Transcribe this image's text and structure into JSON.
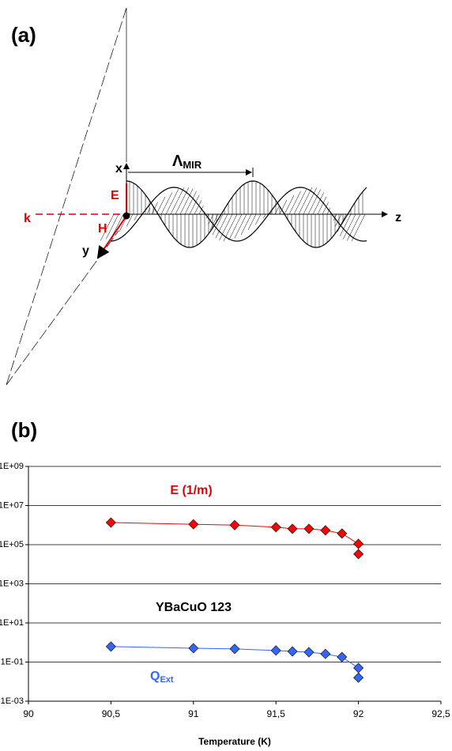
{
  "panel_a": {
    "label": "(a)",
    "diagram": {
      "x_label": "x",
      "e_label": "E",
      "k_label": "k",
      "h_label": "H",
      "y_label": "y",
      "z_label": "z",
      "lambda_symbol": "Λ",
      "lambda_subscript": "MIR"
    }
  },
  "panel_b": {
    "label": "(b)"
  },
  "chart_data": {
    "type": "scatter-line",
    "x_label": "Temperature (K)",
    "log_y": true,
    "grid": true,
    "xlim": [
      90,
      92.5
    ],
    "xticks": [
      90,
      {
        "value": 90.5,
        "label": "90,5"
      },
      91,
      {
        "value": 91.5,
        "label": "91,5"
      },
      92,
      {
        "value": 92.5,
        "label": "92,5"
      }
    ],
    "ylim": [
      0.001,
      1000000000
    ],
    "yticks": [
      {
        "value": 0.001,
        "label": "1E-03"
      },
      {
        "value": 0.1,
        "label": "1E-01"
      },
      {
        "value": 10,
        "label": "1E+01"
      },
      {
        "value": 1000,
        "label": "1E+03"
      },
      {
        "value": 100000,
        "label": "1E+05"
      },
      {
        "value": 10000000,
        "label": "1E+07"
      },
      {
        "value": 1000000000,
        "label": "1E+09"
      }
    ],
    "annotations": {
      "e_field": "E (1/m)",
      "material": "YBaCuO 123",
      "q_main": "Q",
      "q_sub": "Ext"
    },
    "series": [
      {
        "color": "#ff0000",
        "x": [
          90.5,
          91,
          91.25,
          91.5,
          91.6,
          91.7,
          91.8,
          91.9,
          92,
          92
        ],
        "values": [
          1350000,
          1100000,
          1000000,
          780000,
          650000,
          650000,
          540000,
          370000,
          110000,
          33000
        ]
      },
      {
        "color": "#3366ff",
        "x": [
          90.5,
          91,
          91.25,
          91.5,
          91.6,
          91.7,
          91.8,
          91.9,
          92,
          92
        ],
        "values": [
          0.62,
          0.51,
          0.47,
          0.39,
          0.35,
          0.32,
          0.26,
          0.18,
          0.05,
          0.016
        ]
      }
    ]
  }
}
